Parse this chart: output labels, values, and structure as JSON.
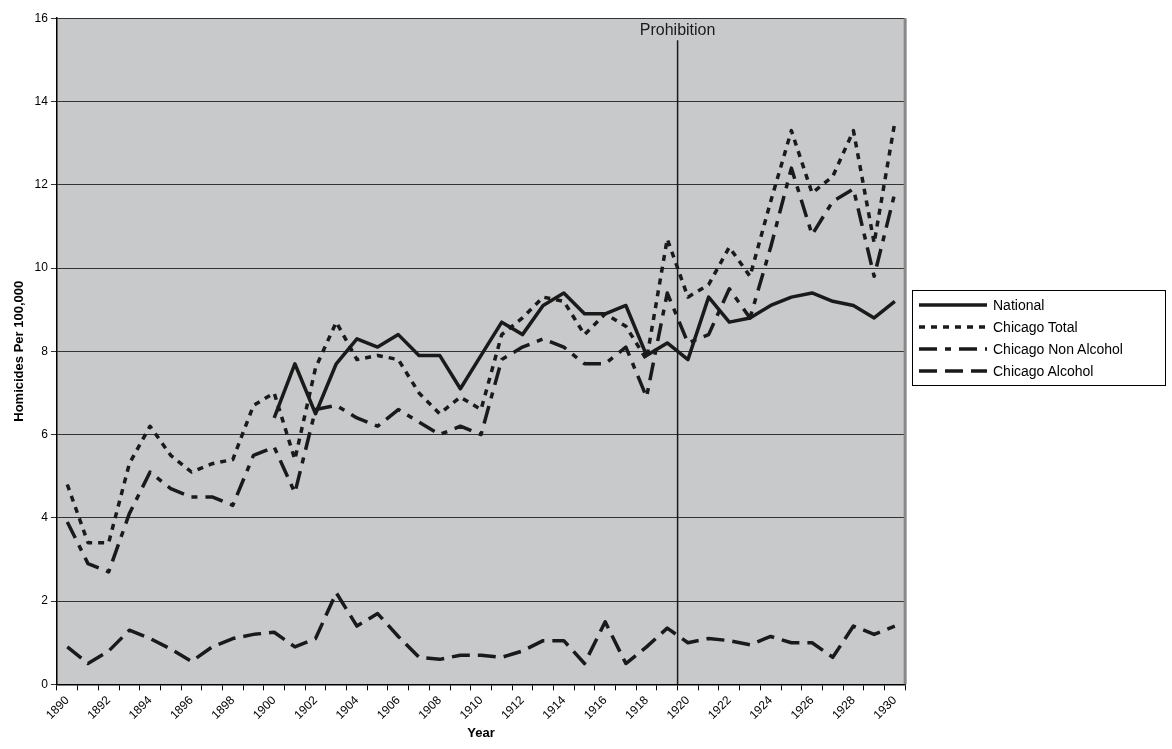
{
  "chart_data": {
    "type": "line",
    "xlabel": "Year",
    "ylabel": "Homicides Per 100,000",
    "categories": [
      "1890",
      null,
      "1892",
      null,
      "1894",
      null,
      "1896",
      null,
      "1898",
      null,
      "1900",
      null,
      "1902",
      null,
      "1904",
      null,
      "1906",
      null,
      "1908",
      null,
      "1910",
      null,
      "1912",
      null,
      "1914",
      null,
      "1916",
      null,
      "1918",
      null,
      "1920",
      null,
      "1922",
      null,
      "1924",
      null,
      "1926",
      null,
      "1928",
      null,
      "1930"
    ],
    "series": [
      {
        "name": "National",
        "color": "#1a1a1a",
        "line_style": "solid",
        "values": [
          null,
          null,
          null,
          null,
          null,
          null,
          null,
          null,
          null,
          null,
          6.4,
          7.7,
          6.5,
          7.7,
          8.3,
          8.1,
          8.4,
          7.9,
          7.9,
          7.1,
          7.9,
          8.7,
          8.4,
          9.1,
          9.4,
          8.9,
          8.9,
          9.1,
          7.9,
          8.2,
          7.8,
          9.3,
          8.7,
          8.8,
          9.1,
          9.3,
          9.4,
          9.2,
          9.1,
          8.8,
          9.2
        ]
      },
      {
        "name": "Chicago Total",
        "color": "#1a1a1a",
        "line_style": "dotted",
        "values": [
          4.8,
          3.4,
          3.4,
          5.3,
          6.2,
          5.5,
          5.1,
          5.3,
          5.4,
          6.7,
          7.0,
          5.4,
          7.6,
          8.7,
          7.8,
          7.9,
          7.8,
          7.0,
          6.5,
          6.9,
          6.6,
          8.4,
          8.8,
          9.3,
          9.2,
          8.4,
          8.9,
          8.6,
          7.8,
          10.7,
          9.3,
          9.6,
          10.5,
          9.8,
          11.6,
          13.3,
          11.8,
          12.2,
          13.3,
          10.6,
          13.5
        ]
      },
      {
        "name": "Chicago Non Alcohol",
        "color": "#1a1a1a",
        "line_style": "dashdot",
        "values": [
          3.9,
          2.9,
          2.7,
          4.1,
          5.1,
          4.7,
          4.5,
          4.5,
          4.3,
          5.5,
          5.7,
          4.6,
          6.6,
          6.7,
          6.4,
          6.2,
          6.6,
          6.3,
          6.0,
          6.2,
          6.0,
          7.8,
          8.1,
          8.3,
          8.1,
          7.7,
          7.7,
          8.1,
          6.9,
          9.4,
          8.2,
          8.4,
          9.5,
          8.8,
          10.5,
          12.4,
          10.8,
          11.6,
          11.9,
          9.8,
          11.8
        ]
      },
      {
        "name": "Chicago Alcohol",
        "color": "#1a1a1a",
        "line_style": "dashed",
        "values": [
          0.9,
          0.5,
          0.8,
          1.3,
          1.1,
          0.85,
          0.55,
          0.9,
          1.1,
          1.2,
          1.25,
          0.9,
          1.1,
          2.2,
          1.4,
          1.7,
          1.15,
          0.65,
          0.6,
          0.7,
          0.7,
          0.65,
          0.8,
          1.05,
          1.05,
          0.5,
          1.5,
          0.5,
          0.9,
          1.35,
          1.0,
          1.1,
          1.05,
          0.95,
          1.15,
          1.0,
          1.0,
          0.65,
          1.4,
          1.2,
          1.4
        ]
      }
    ],
    "ylim": [
      0,
      16
    ],
    "yticks": [
      0,
      2,
      4,
      6,
      8,
      10,
      12,
      14,
      16
    ],
    "grid": "y",
    "legend": "right",
    "marker": "none",
    "ref_lines": [
      {
        "axis": "x",
        "value": "1920",
        "label": "Prohibition",
        "color": "#1a1a1a"
      }
    ]
  }
}
